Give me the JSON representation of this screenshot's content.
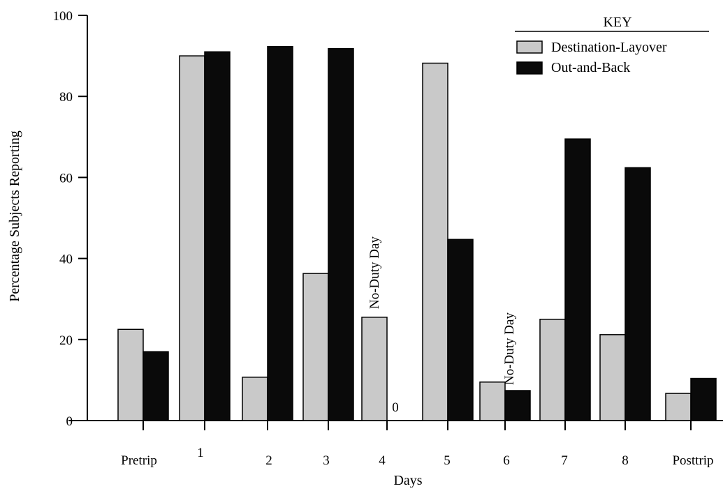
{
  "colors": {
    "background": "#ffffff",
    "destination_layover": "#c9c9c9",
    "out_and_back": "#0a0a0a",
    "axis": "#000000"
  },
  "chart_data": {
    "type": "bar",
    "title": "",
    "xlabel": "Days",
    "ylabel": "Percentage Subjects Reporting",
    "ylim": [
      0,
      100
    ],
    "yticks": [
      0,
      20,
      40,
      60,
      80,
      100
    ],
    "categories": [
      "Pretrip",
      "1",
      "2",
      "3",
      "4",
      "5",
      "6",
      "7",
      "8",
      "Posttrip"
    ],
    "series": [
      {
        "name": "Destination-Layover",
        "values": [
          22.5,
          90,
          10.7,
          36.3,
          25.5,
          88.2,
          9.5,
          25,
          21.2,
          6.7
        ]
      },
      {
        "name": "Out-and-Back",
        "values": [
          17,
          91,
          92.3,
          91.8,
          0,
          44.7,
          7.4,
          69.5,
          62.4,
          10.4
        ]
      }
    ],
    "legend": {
      "title": "KEY",
      "position": "top-right"
    },
    "annotations": [
      {
        "text": "No-Duty Day",
        "category": "4",
        "series": "Out-and-Back",
        "orientation": "vertical"
      },
      {
        "text": "No-Duty Day",
        "category": "6",
        "series": "Out-and-Back",
        "orientation": "vertical"
      },
      {
        "text": "0",
        "category": "4",
        "series": "Out-and-Back",
        "orientation": "horizontal"
      }
    ],
    "grid": false
  }
}
